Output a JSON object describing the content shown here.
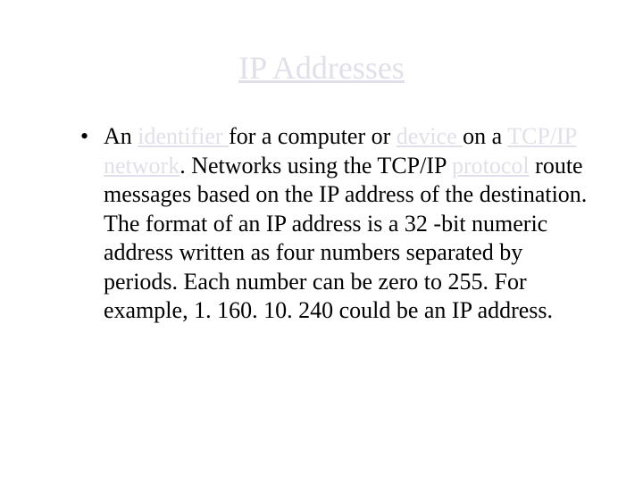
{
  "title": "IP Addresses",
  "bullet_mark": "•",
  "body_segments": [
    {
      "text": "An ",
      "link": false
    },
    {
      "text": "identifier ",
      "link": true
    },
    {
      "text": "for a computer or ",
      "link": false
    },
    {
      "text": "device ",
      "link": true
    },
    {
      "text": "on a ",
      "link": false
    },
    {
      "text": "TCP/IP",
      "link": true
    },
    {
      "text": " ",
      "link": false
    },
    {
      "text": "network",
      "link": true
    },
    {
      "text": ". Networks using the TCP/IP ",
      "link": false
    },
    {
      "text": "protocol",
      "link": true
    },
    {
      "text": " route messages based on the IP address of the destination. The format of an IP address is a 32 -bit numeric address written as four numbers separated by periods. Each number can be zero to 255. For example, 1. 160. 10. 240 could be an IP address.",
      "link": false
    }
  ],
  "colors": {
    "background": "#ffffff",
    "body_text": "#000000",
    "link_and_title": "#e0e0ea"
  },
  "typography": {
    "title_fontsize": 36,
    "body_fontsize": 26,
    "font_family": "Times New Roman"
  }
}
